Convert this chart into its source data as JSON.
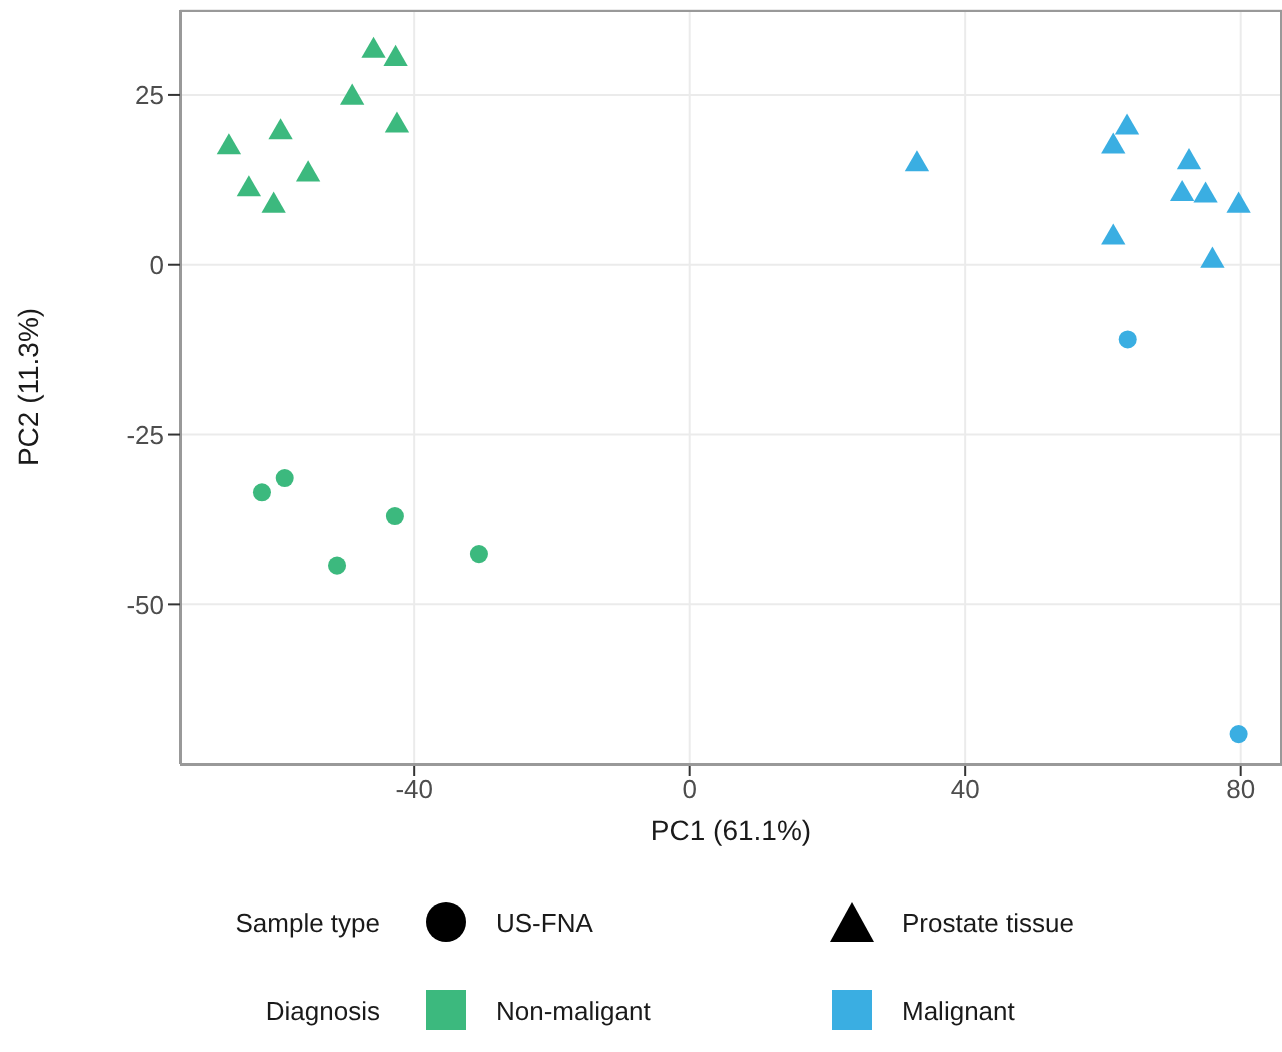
{
  "chart_data": {
    "type": "scatter",
    "xlabel": "PC1 (61.1%)",
    "ylabel": "PC2 (11.3%)",
    "xlim": [
      -74,
      86
    ],
    "ylim": [
      -73.5,
      37.5
    ],
    "xticks": [
      -40,
      0,
      40,
      80
    ],
    "yticks": [
      -50,
      -25,
      0,
      25
    ],
    "grid": true,
    "annotations": [
      "Sample type",
      "US-FNA",
      "Prostate tissue",
      "Diagnosis",
      "Non-maligant",
      "Malignant"
    ],
    "series": [
      {
        "color": "#3cb97e",
        "marker": "circle",
        "x": [
          -62.1,
          -58.8,
          -42.8,
          -51.2,
          -30.6
        ],
        "values": [
          -33.5,
          -31.4,
          -37,
          -44.3,
          -42.6
        ]
      },
      {
        "color": "#3cb97e",
        "marker": "triangle",
        "x": [
          -45.9,
          -42.7,
          -49,
          -59.4,
          -42.5,
          -66.9,
          -55.4,
          -64,
          -60.4
        ],
        "values": [
          31.5,
          30.3,
          24.6,
          19.5,
          20.5,
          17.3,
          13.3,
          11.1,
          8.7
        ]
      },
      {
        "color": "#3aaee2",
        "marker": "circle",
        "x": [
          63.6,
          79.7
        ],
        "values": [
          -11,
          -69.1
        ]
      },
      {
        "color": "#3aaee2",
        "marker": "triangle",
        "x": [
          33,
          63.5,
          61.5,
          72.5,
          71.5,
          74.9,
          79.7,
          61.5,
          75.9
        ],
        "values": [
          14.8,
          20.2,
          17.4,
          15.1,
          10.4,
          10.2,
          8.7,
          4,
          0.6
        ]
      }
    ]
  }
}
